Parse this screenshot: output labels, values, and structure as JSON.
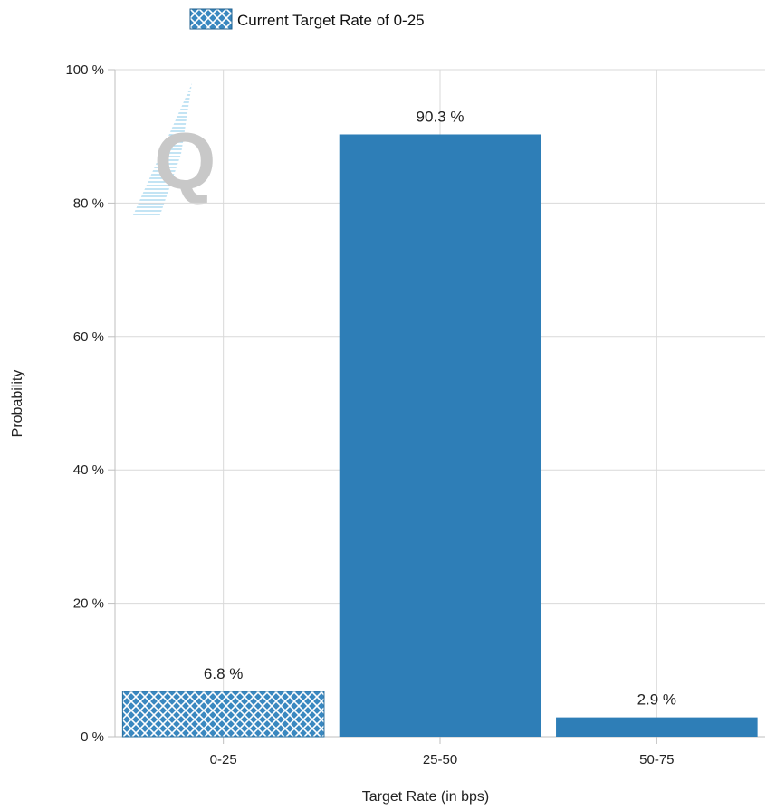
{
  "chart_data": {
    "type": "bar",
    "title": "",
    "xlabel": "Target Rate (in bps)",
    "ylabel": "Probability",
    "categories": [
      "0-25",
      "25-50",
      "50-75"
    ],
    "values": [
      6.8,
      90.3,
      2.9
    ],
    "value_labels": [
      "6.8 %",
      "90.3 %",
      "2.9 %"
    ],
    "highlighted_category": "0-25",
    "ylim": [
      0,
      100
    ],
    "yticks": [
      0,
      20,
      40,
      60,
      80,
      100
    ],
    "ytick_labels": [
      "0 %",
      "20 %",
      "40 %",
      "60 %",
      "80 %",
      "100 %"
    ],
    "grid": true,
    "legend": {
      "position": "top",
      "entries": [
        {
          "label": "Current Target Rate of 0-25",
          "pattern": "crosshatch"
        }
      ]
    },
    "colors": {
      "bar": "#2e7eb7",
      "hatch_bg": "#3a88c0",
      "hatch_line": "#ffffff",
      "grid": "#d9d9d9",
      "axis": "#bfbfbf"
    }
  }
}
